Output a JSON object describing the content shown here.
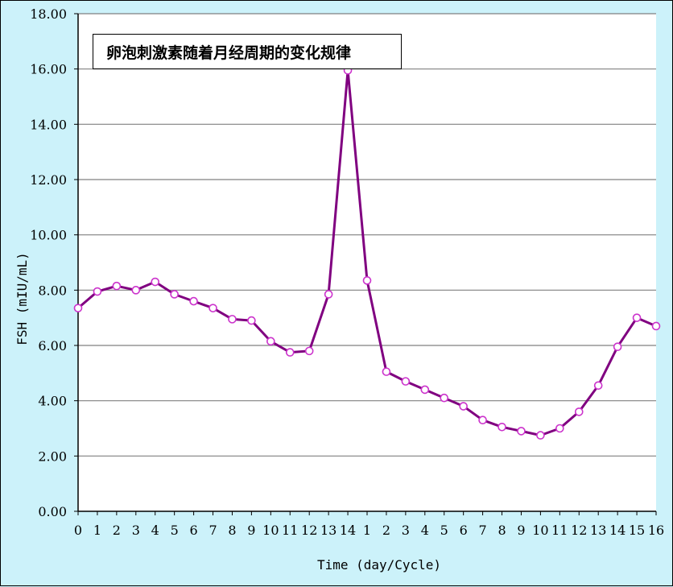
{
  "chart_data": {
    "type": "line",
    "title": "卵泡刺激素随着月经周期的变化规律",
    "xlabel": "Time (day/Cycle)",
    "ylabel": "FSH (mIU/mL)",
    "ylim": [
      0,
      18
    ],
    "yticks": [
      "0.00",
      "2.00",
      "4.00",
      "6.00",
      "8.00",
      "10.00",
      "12.00",
      "14.00",
      "16.00",
      "18.00"
    ],
    "grid": true,
    "categories": [
      "0",
      "1",
      "2",
      "3",
      "4",
      "5",
      "6",
      "7",
      "8",
      "9",
      "10",
      "11",
      "12",
      "13",
      "14",
      "1",
      "2",
      "3",
      "4",
      "5",
      "6",
      "7",
      "8",
      "9",
      "10",
      "11",
      "12",
      "13",
      "14",
      "15",
      "16"
    ],
    "series": [
      {
        "values": [
          7.35,
          7.95,
          8.15,
          8.0,
          8.3,
          7.85,
          7.6,
          7.35,
          6.95,
          6.9,
          6.15,
          5.75,
          5.8,
          7.85,
          15.95,
          8.35,
          5.05,
          4.7,
          4.4,
          4.1,
          3.8,
          3.3,
          3.05,
          2.9,
          2.75,
          3.0,
          3.6,
          4.55,
          5.95,
          7.0,
          6.7
        ]
      }
    ],
    "colors": {
      "line": "#800080",
      "marker_stroke": "#cc33cc",
      "marker_fill": "#ffffff",
      "plot_background": "#ffffff",
      "page_background": "#ccf2fa",
      "gridline": "#808080"
    }
  }
}
